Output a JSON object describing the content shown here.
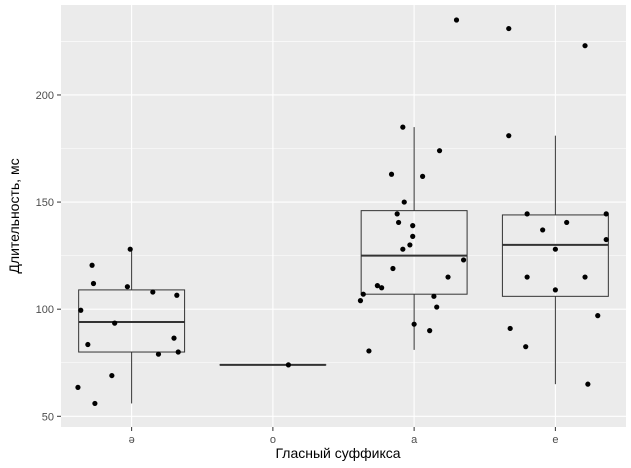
{
  "chart_data": {
    "type": "boxplot",
    "title": "",
    "xlabel": "Гласный суффикса",
    "ylabel": "Длительность, мс",
    "categories": [
      "ə",
      "o",
      "a",
      "e"
    ],
    "ylim": [
      45,
      242
    ],
    "y_ticks": [
      50,
      100,
      150,
      200
    ],
    "grid": true,
    "legend": "none",
    "colors": {
      "panel_bg": "#ebebeb",
      "grid": "#ffffff",
      "box_line": "#333333",
      "point": "#000000",
      "tick_text": "#4d4d4d",
      "axis_title": "#000000"
    },
    "boxes": [
      {
        "category": "ə",
        "q1": 80,
        "median": 94,
        "q3": 109,
        "whisker_low": 56,
        "whisker_high": 128
      },
      {
        "category": "o",
        "q1": 74,
        "median": 74,
        "q3": 74,
        "whisker_low": 74,
        "whisker_high": 74
      },
      {
        "category": "a",
        "q1": 107,
        "median": 125,
        "q3": 146,
        "whisker_low": 81,
        "whisker_high": 185
      },
      {
        "category": "e",
        "q1": 106,
        "median": 130,
        "q3": 144,
        "whisker_low": 65,
        "whisker_high": 181
      }
    ],
    "points": [
      {
        "category": "ə",
        "jitter": -0.38,
        "y": 63.5
      },
      {
        "category": "ə",
        "jitter": -0.26,
        "y": 56
      },
      {
        "category": "ə",
        "jitter": -0.27,
        "y": 112
      },
      {
        "category": "ə",
        "jitter": -0.28,
        "y": 120.5
      },
      {
        "category": "ə",
        "jitter": -0.36,
        "y": 99.5
      },
      {
        "category": "ə",
        "jitter": -0.31,
        "y": 83.5
      },
      {
        "category": "ə",
        "jitter": -0.14,
        "y": 69
      },
      {
        "category": "ə",
        "jitter": -0.12,
        "y": 93.5
      },
      {
        "category": "ə",
        "jitter": -0.03,
        "y": 110.5
      },
      {
        "category": "ə",
        "jitter": -0.01,
        "y": 128
      },
      {
        "category": "ə",
        "jitter": 0.15,
        "y": 108
      },
      {
        "category": "ə",
        "jitter": 0.19,
        "y": 79
      },
      {
        "category": "ə",
        "jitter": 0.3,
        "y": 86.5
      },
      {
        "category": "ə",
        "jitter": 0.32,
        "y": 106.5
      },
      {
        "category": "ə",
        "jitter": 0.33,
        "y": 80
      },
      {
        "category": "o",
        "jitter": 0.11,
        "y": 74
      },
      {
        "category": "a",
        "jitter": -0.38,
        "y": 104
      },
      {
        "category": "a",
        "jitter": -0.36,
        "y": 107
      },
      {
        "category": "a",
        "jitter": -0.32,
        "y": 80.5
      },
      {
        "category": "a",
        "jitter": -0.26,
        "y": 111
      },
      {
        "category": "a",
        "jitter": -0.23,
        "y": 110
      },
      {
        "category": "a",
        "jitter": -0.16,
        "y": 163
      },
      {
        "category": "a",
        "jitter": -0.15,
        "y": 119
      },
      {
        "category": "a",
        "jitter": -0.12,
        "y": 144.5
      },
      {
        "category": "a",
        "jitter": -0.11,
        "y": 140.5
      },
      {
        "category": "a",
        "jitter": -0.08,
        "y": 185
      },
      {
        "category": "a",
        "jitter": -0.07,
        "y": 150
      },
      {
        "category": "a",
        "jitter": -0.08,
        "y": 128
      },
      {
        "category": "a",
        "jitter": -0.03,
        "y": 130
      },
      {
        "category": "a",
        "jitter": -0.01,
        "y": 139
      },
      {
        "category": "a",
        "jitter": -0.01,
        "y": 134
      },
      {
        "category": "a",
        "jitter": 0.0,
        "y": 93
      },
      {
        "category": "a",
        "jitter": 0.06,
        "y": 162
      },
      {
        "category": "a",
        "jitter": 0.11,
        "y": 90
      },
      {
        "category": "a",
        "jitter": 0.14,
        "y": 106
      },
      {
        "category": "a",
        "jitter": 0.16,
        "y": 101
      },
      {
        "category": "a",
        "jitter": 0.18,
        "y": 174
      },
      {
        "category": "a",
        "jitter": 0.24,
        "y": 115
      },
      {
        "category": "a",
        "jitter": 0.3,
        "y": 235
      },
      {
        "category": "a",
        "jitter": 0.35,
        "y": 123
      },
      {
        "category": "e",
        "jitter": -0.33,
        "y": 231
      },
      {
        "category": "e",
        "jitter": -0.33,
        "y": 181
      },
      {
        "category": "e",
        "jitter": -0.32,
        "y": 91
      },
      {
        "category": "e",
        "jitter": -0.2,
        "y": 144.5
      },
      {
        "category": "e",
        "jitter": -0.2,
        "y": 115
      },
      {
        "category": "e",
        "jitter": -0.21,
        "y": 82.5
      },
      {
        "category": "e",
        "jitter": -0.09,
        "y": 137
      },
      {
        "category": "e",
        "jitter": 0.0,
        "y": 128
      },
      {
        "category": "e",
        "jitter": 0.0,
        "y": 109
      },
      {
        "category": "e",
        "jitter": 0.08,
        "y": 140.5
      },
      {
        "category": "e",
        "jitter": 0.21,
        "y": 223
      },
      {
        "category": "e",
        "jitter": 0.21,
        "y": 115
      },
      {
        "category": "e",
        "jitter": 0.23,
        "y": 65
      },
      {
        "category": "e",
        "jitter": 0.3,
        "y": 97
      },
      {
        "category": "e",
        "jitter": 0.36,
        "y": 132.5
      },
      {
        "category": "e",
        "jitter": 0.36,
        "y": 144.5
      }
    ]
  }
}
